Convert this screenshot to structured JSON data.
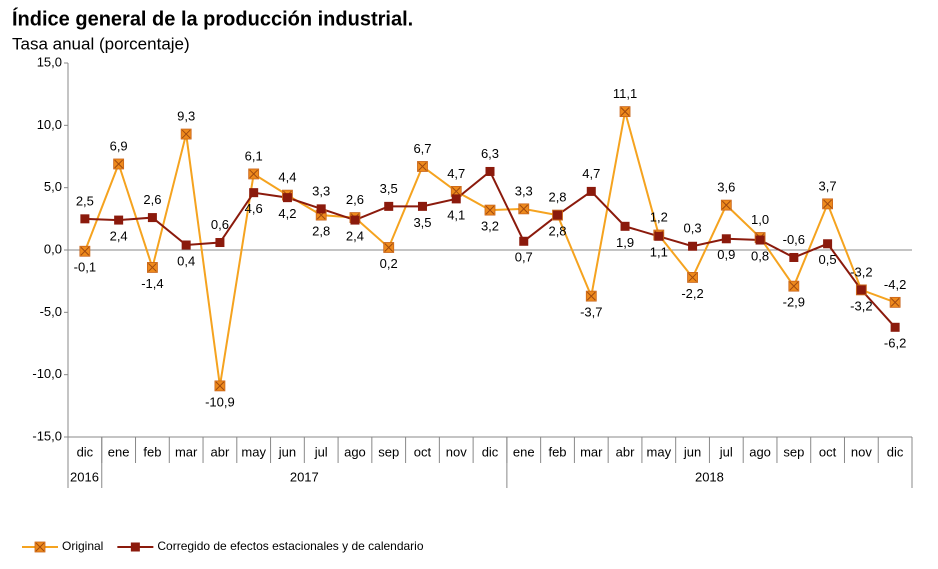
{
  "chart_data": {
    "type": "line",
    "title": "Índice general de la producción industrial.",
    "subtitle": "Tasa anual (porcentaje)",
    "categories": [
      "dic",
      "ene",
      "feb",
      "mar",
      "abr",
      "may",
      "jun",
      "jul",
      "ago",
      "sep",
      "oct",
      "nov",
      "dic",
      "ene",
      "feb",
      "mar",
      "abr",
      "may",
      "jun",
      "jul",
      "ago",
      "sep",
      "oct",
      "nov",
      "dic"
    ],
    "year_groups": [
      {
        "label": "2016",
        "count": 1
      },
      {
        "label": "2017",
        "count": 12
      },
      {
        "label": "2018",
        "count": 12
      }
    ],
    "series": [
      {
        "name": "Original",
        "color": "#f5a31f",
        "marker_color": "#ee8a1c",
        "values": [
          -0.1,
          6.9,
          -1.4,
          9.3,
          -10.9,
          6.1,
          4.4,
          2.8,
          2.6,
          0.2,
          6.7,
          4.7,
          3.2,
          3.3,
          2.8,
          -3.7,
          11.1,
          1.2,
          -2.2,
          3.6,
          1.0,
          -2.9,
          3.7,
          -3.2,
          -4.2
        ],
        "value_labels": [
          "-0,1",
          "6,9",
          "-1,4",
          "9,3",
          "-10,9",
          "6,1",
          "4,4",
          "2,8",
          "2,6",
          "0,2",
          "6,7",
          "4,7",
          "3,2",
          "3,3",
          "2,8",
          "-3,7",
          "11,1",
          "1,2",
          "-2,2",
          "3,6",
          "1,0",
          "-2,9",
          "3,7",
          "-3,2",
          "-4,2"
        ]
      },
      {
        "name": "Corregido de efectos estacionales y de calendario",
        "color": "#8b1a0c",
        "marker_color": "#8b1a0c",
        "values": [
          2.5,
          2.4,
          2.6,
          0.4,
          0.6,
          4.6,
          4.2,
          3.3,
          2.4,
          3.5,
          3.5,
          4.1,
          6.3,
          0.7,
          2.8,
          4.7,
          1.9,
          1.1,
          0.3,
          0.9,
          0.8,
          -0.6,
          0.5,
          -3.2,
          -6.2
        ],
        "value_labels": [
          "2,5",
          "2,4",
          "2,6",
          "0,4",
          "0,6",
          "4,6",
          "4,2",
          "3,3",
          "2,4",
          "3,5",
          "3,5",
          "4,1",
          "6,3",
          "0,7",
          "2,8",
          "4,7",
          "1,9",
          "1,1",
          "0,3",
          "0,9",
          "0,8",
          "-0,6",
          "0,5",
          "-3,2",
          "-6,2"
        ]
      }
    ],
    "ylim": [
      -15,
      15
    ],
    "yticks": [
      {
        "value": -15,
        "label": "-15,0"
      },
      {
        "value": -10,
        "label": "-10,0"
      },
      {
        "value": -5,
        "label": "-5,0"
      },
      {
        "value": 0,
        "label": "0,0"
      },
      {
        "value": 5,
        "label": "5,0"
      },
      {
        "value": 10,
        "label": "10,0"
      },
      {
        "value": 15,
        "label": "15,0"
      }
    ],
    "grid": false,
    "legend": "bottom-left"
  }
}
